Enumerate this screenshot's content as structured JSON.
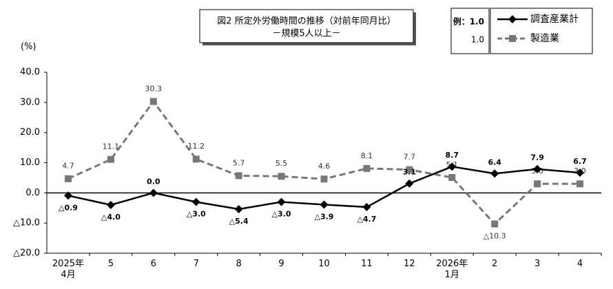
{
  "chart_data": {
    "type": "line",
    "title": "図2 所定外労働時間の推移（対前年同月比）",
    "subtitle": "－規模5人以上－",
    "y_label": "(%)",
    "legend_example": [
      "例：1.0",
      "1.0"
    ],
    "categories": [
      "2025年\n4月",
      "5",
      "6",
      "7",
      "8",
      "9",
      "10",
      "11",
      "12",
      "2026年\n1月",
      "2",
      "3",
      "4"
    ],
    "ylim": [
      -20,
      40
    ],
    "yticks": [
      {
        "value": 40,
        "label": "40.0"
      },
      {
        "value": 30,
        "label": "30.0"
      },
      {
        "value": 20,
        "label": "20.0"
      },
      {
        "value": 10,
        "label": "10.0"
      },
      {
        "value": 0,
        "label": "0.0"
      },
      {
        "value": -10,
        "label": "△10.0"
      },
      {
        "value": -20,
        "label": "△20.0"
      }
    ],
    "grid": false,
    "series": [
      {
        "name": "調査産業計",
        "color": "#000000",
        "dash": false,
        "marker": "diamond",
        "bold_labels": true,
        "values": [
          -0.9,
          -4.0,
          0.0,
          -3.0,
          -5.4,
          -3.0,
          -3.9,
          -4.7,
          3.1,
          8.7,
          6.4,
          7.9,
          6.7
        ],
        "value_labels": [
          "△0.9",
          "△4.0",
          "0.0",
          "△3.0",
          "△5.4",
          "△3.0",
          "△3.9",
          "△4.7",
          "3.1",
          "8.7",
          "6.4",
          "7.9",
          "6.7"
        ]
      },
      {
        "name": "製造業",
        "color": "#777777",
        "dash": true,
        "marker": "square",
        "bold_labels": false,
        "values": [
          4.7,
          11.1,
          30.3,
          11.2,
          5.7,
          5.5,
          4.6,
          8.1,
          7.7,
          5.1,
          -10.3,
          3.0,
          3.0
        ],
        "value_labels": [
          "4.7",
          "11.1",
          "30.3",
          "11.2",
          "5.7",
          "5.5",
          "4.6",
          "8.1",
          "7.7",
          "5.1",
          "△10.3",
          "3.0",
          "3.0"
        ]
      }
    ]
  }
}
